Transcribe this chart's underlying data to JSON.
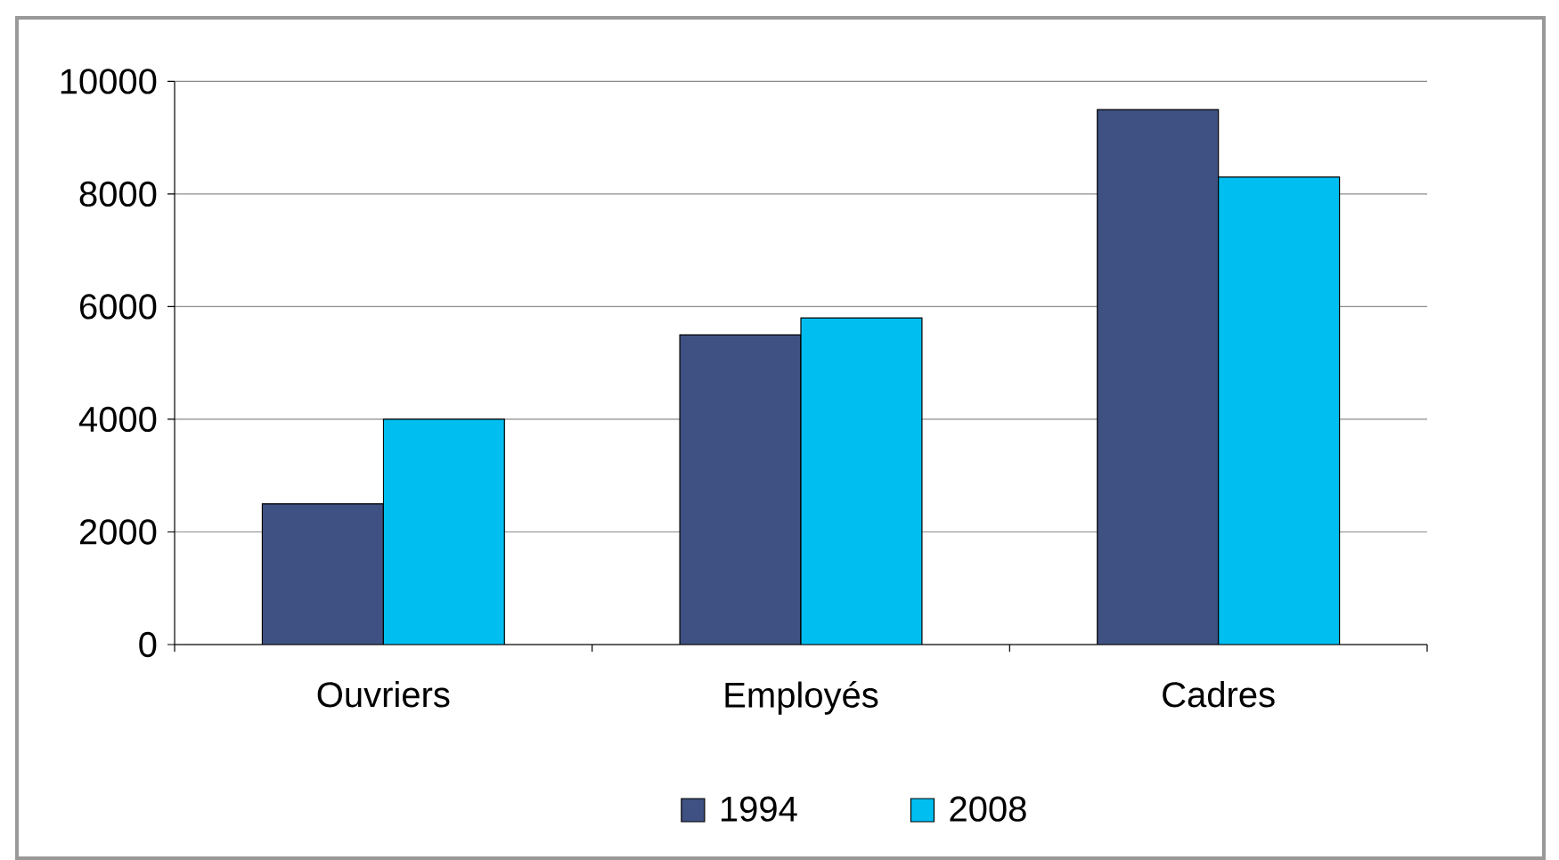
{
  "chart_data": {
    "type": "bar",
    "categories": [
      "Ouvriers",
      "Employés",
      "Cadres"
    ],
    "series": [
      {
        "name": "1994",
        "color": "#3f5182",
        "values": [
          2500,
          5500,
          9500
        ]
      },
      {
        "name": "2008",
        "color": "#00bff0",
        "values": [
          4000,
          5800,
          8300
        ]
      }
    ],
    "ylim": [
      0,
      10000
    ],
    "yticks": [
      0,
      2000,
      4000,
      6000,
      8000,
      10000
    ],
    "grid": "y",
    "legend": "bottom"
  }
}
